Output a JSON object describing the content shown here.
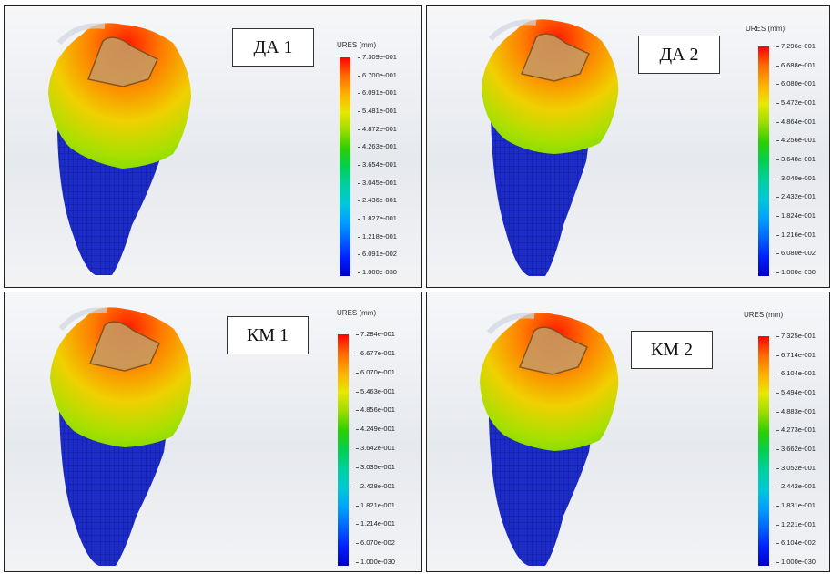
{
  "panels": [
    {
      "label": "ДА 1",
      "legend_title": "URES (mm)",
      "ticks": [
        "7.309e-001",
        "6.700e-001",
        "6.091e-001",
        "5.481e-001",
        "4.872e-001",
        "4.263e-001",
        "3.654e-001",
        "3.045e-001",
        "2.436e-001",
        "1.827e-001",
        "1.218e-001",
        "6.091e-002",
        "1.000e-030"
      ]
    },
    {
      "label": "ДА 2",
      "legend_title": "URES (mm)",
      "ticks": [
        "7.296e-001",
        "6.688e-001",
        "6.080e-001",
        "5.472e-001",
        "4.864e-001",
        "4.256e-001",
        "3.648e-001",
        "3.040e-001",
        "2.432e-001",
        "1.824e-001",
        "1.216e-001",
        "6.080e-002",
        "1.000e-030"
      ]
    },
    {
      "label": "КМ 1",
      "legend_title": "URES (mm)",
      "ticks": [
        "7.284e-001",
        "6.677e-001",
        "6.070e-001",
        "5.463e-001",
        "4.856e-001",
        "4.249e-001",
        "3.642e-001",
        "3.035e-001",
        "2.428e-001",
        "1.821e-001",
        "1.214e-001",
        "6.070e-002",
        "1.000e-030"
      ]
    },
    {
      "label": "КМ 2",
      "legend_title": "URES (mm)",
      "ticks": [
        "7.325e-001",
        "6.714e-001",
        "6.104e-001",
        "5.494e-001",
        "4.883e-001",
        "4.273e-001",
        "3.662e-001",
        "3.052e-001",
        "2.442e-001",
        "1.831e-001",
        "1.221e-001",
        "6.104e-002",
        "1.000e-030"
      ]
    }
  ],
  "colormap": [
    "#ff0000",
    "#ff6a00",
    "#ffb000",
    "#e8e800",
    "#9cdc00",
    "#2ccf00",
    "#00d050",
    "#00d0a0",
    "#00c8d8",
    "#00a0ff",
    "#0064ff",
    "#0020ff",
    "#0000c8"
  ]
}
